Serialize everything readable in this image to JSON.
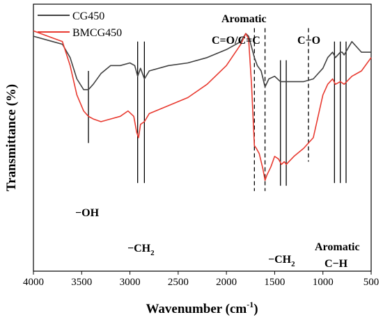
{
  "chart_data": {
    "type": "line",
    "xlabel": "Wavenumber (cm",
    "xlabel_sup": "-1",
    "xlabel_close": ")",
    "ylabel": "Transmittance (%)",
    "xlim": [
      4000,
      500
    ],
    "x_ticks": [
      "4000",
      "3500",
      "3000",
      "2500",
      "2000",
      "1500",
      "1000",
      "500"
    ],
    "y_ticks_shown": false,
    "legend_position": "top-left",
    "series": [
      {
        "name": "CG450",
        "color": "#404040",
        "points": [
          [
            4000,
            0.88
          ],
          [
            3800,
            0.86
          ],
          [
            3700,
            0.85
          ],
          [
            3620,
            0.8
          ],
          [
            3550,
            0.72
          ],
          [
            3480,
            0.68
          ],
          [
            3430,
            0.68
          ],
          [
            3380,
            0.7
          ],
          [
            3300,
            0.74
          ],
          [
            3200,
            0.77
          ],
          [
            3100,
            0.77
          ],
          [
            3000,
            0.78
          ],
          [
            2950,
            0.77
          ],
          [
            2920,
            0.73
          ],
          [
            2890,
            0.76
          ],
          [
            2850,
            0.72
          ],
          [
            2800,
            0.75
          ],
          [
            2600,
            0.77
          ],
          [
            2400,
            0.78
          ],
          [
            2200,
            0.8
          ],
          [
            2000,
            0.83
          ],
          [
            1850,
            0.86
          ],
          [
            1800,
            0.89
          ],
          [
            1770,
            0.88
          ],
          [
            1740,
            0.84
          ],
          [
            1710,
            0.8
          ],
          [
            1680,
            0.77
          ],
          [
            1640,
            0.75
          ],
          [
            1600,
            0.69
          ],
          [
            1560,
            0.72
          ],
          [
            1500,
            0.73
          ],
          [
            1440,
            0.71
          ],
          [
            1380,
            0.71
          ],
          [
            1300,
            0.71
          ],
          [
            1200,
            0.71
          ],
          [
            1100,
            0.72
          ],
          [
            1000,
            0.76
          ],
          [
            950,
            0.8
          ],
          [
            900,
            0.82
          ],
          [
            870,
            0.8
          ],
          [
            820,
            0.82
          ],
          [
            800,
            0.82
          ],
          [
            780,
            0.81
          ],
          [
            700,
            0.86
          ],
          [
            600,
            0.82
          ],
          [
            500,
            0.82
          ]
        ]
      },
      {
        "name": "BMCG450",
        "color": "#e8392f",
        "points": [
          [
            4000,
            0.9
          ],
          [
            3850,
            0.88
          ],
          [
            3700,
            0.86
          ],
          [
            3620,
            0.77
          ],
          [
            3550,
            0.66
          ],
          [
            3480,
            0.6
          ],
          [
            3430,
            0.58
          ],
          [
            3380,
            0.57
          ],
          [
            3300,
            0.56
          ],
          [
            3200,
            0.57
          ],
          [
            3100,
            0.58
          ],
          [
            3020,
            0.6
          ],
          [
            2960,
            0.58
          ],
          [
            2930,
            0.52
          ],
          [
            2910,
            0.5
          ],
          [
            2890,
            0.55
          ],
          [
            2850,
            0.56
          ],
          [
            2800,
            0.59
          ],
          [
            2600,
            0.62
          ],
          [
            2400,
            0.65
          ],
          [
            2200,
            0.7
          ],
          [
            2000,
            0.77
          ],
          [
            1850,
            0.85
          ],
          [
            1800,
            0.89
          ],
          [
            1770,
            0.87
          ],
          [
            1740,
            0.7
          ],
          [
            1710,
            0.47
          ],
          [
            1690,
            0.46
          ],
          [
            1660,
            0.44
          ],
          [
            1620,
            0.38
          ],
          [
            1600,
            0.34
          ],
          [
            1580,
            0.36
          ],
          [
            1540,
            0.39
          ],
          [
            1500,
            0.43
          ],
          [
            1460,
            0.42
          ],
          [
            1430,
            0.4
          ],
          [
            1400,
            0.41
          ],
          [
            1380,
            0.4
          ],
          [
            1300,
            0.43
          ],
          [
            1200,
            0.46
          ],
          [
            1100,
            0.5
          ],
          [
            1050,
            0.58
          ],
          [
            1000,
            0.66
          ],
          [
            950,
            0.7
          ],
          [
            900,
            0.72
          ],
          [
            870,
            0.7
          ],
          [
            820,
            0.71
          ],
          [
            780,
            0.7
          ],
          [
            700,
            0.73
          ],
          [
            600,
            0.75
          ],
          [
            500,
            0.8
          ]
        ]
      }
    ],
    "marker_lines": [
      {
        "x": 3430,
        "style": "solid",
        "top": 0.75,
        "bottom": 0.48
      },
      {
        "x": 2920,
        "style": "solid",
        "top": 0.86,
        "bottom": 0.33
      },
      {
        "x": 2850,
        "style": "solid",
        "top": 0.86,
        "bottom": 0.33
      },
      {
        "x": 1710,
        "style": "dashed",
        "top": 0.91,
        "bottom": 0.3
      },
      {
        "x": 1600,
        "style": "dashed",
        "top": 0.91,
        "bottom": 0.3
      },
      {
        "x": 1440,
        "style": "solid",
        "top": 0.79,
        "bottom": 0.32
      },
      {
        "x": 1380,
        "style": "solid",
        "top": 0.79,
        "bottom": 0.32
      },
      {
        "x": 1150,
        "style": "dashed",
        "top": 0.91,
        "bottom": 0.41
      },
      {
        "x": 880,
        "style": "solid",
        "top": 0.86,
        "bottom": 0.33
      },
      {
        "x": 820,
        "style": "solid",
        "top": 0.86,
        "bottom": 0.33
      },
      {
        "x": 760,
        "style": "solid",
        "top": 0.86,
        "bottom": 0.33
      }
    ],
    "annotations": {
      "oh": "−OH",
      "ch2_left_prefix": "−CH",
      "ch2_left_sub": "2",
      "ch2_right_prefix": "−CH",
      "ch2_right_sub": "2",
      "aromatic_top_1": "Aromatic",
      "aromatic_top_2": "C=O/C=C",
      "co": "C−O",
      "aromatic_bottom_1": "Aromatic",
      "aromatic_bottom_2": "C−H"
    }
  }
}
